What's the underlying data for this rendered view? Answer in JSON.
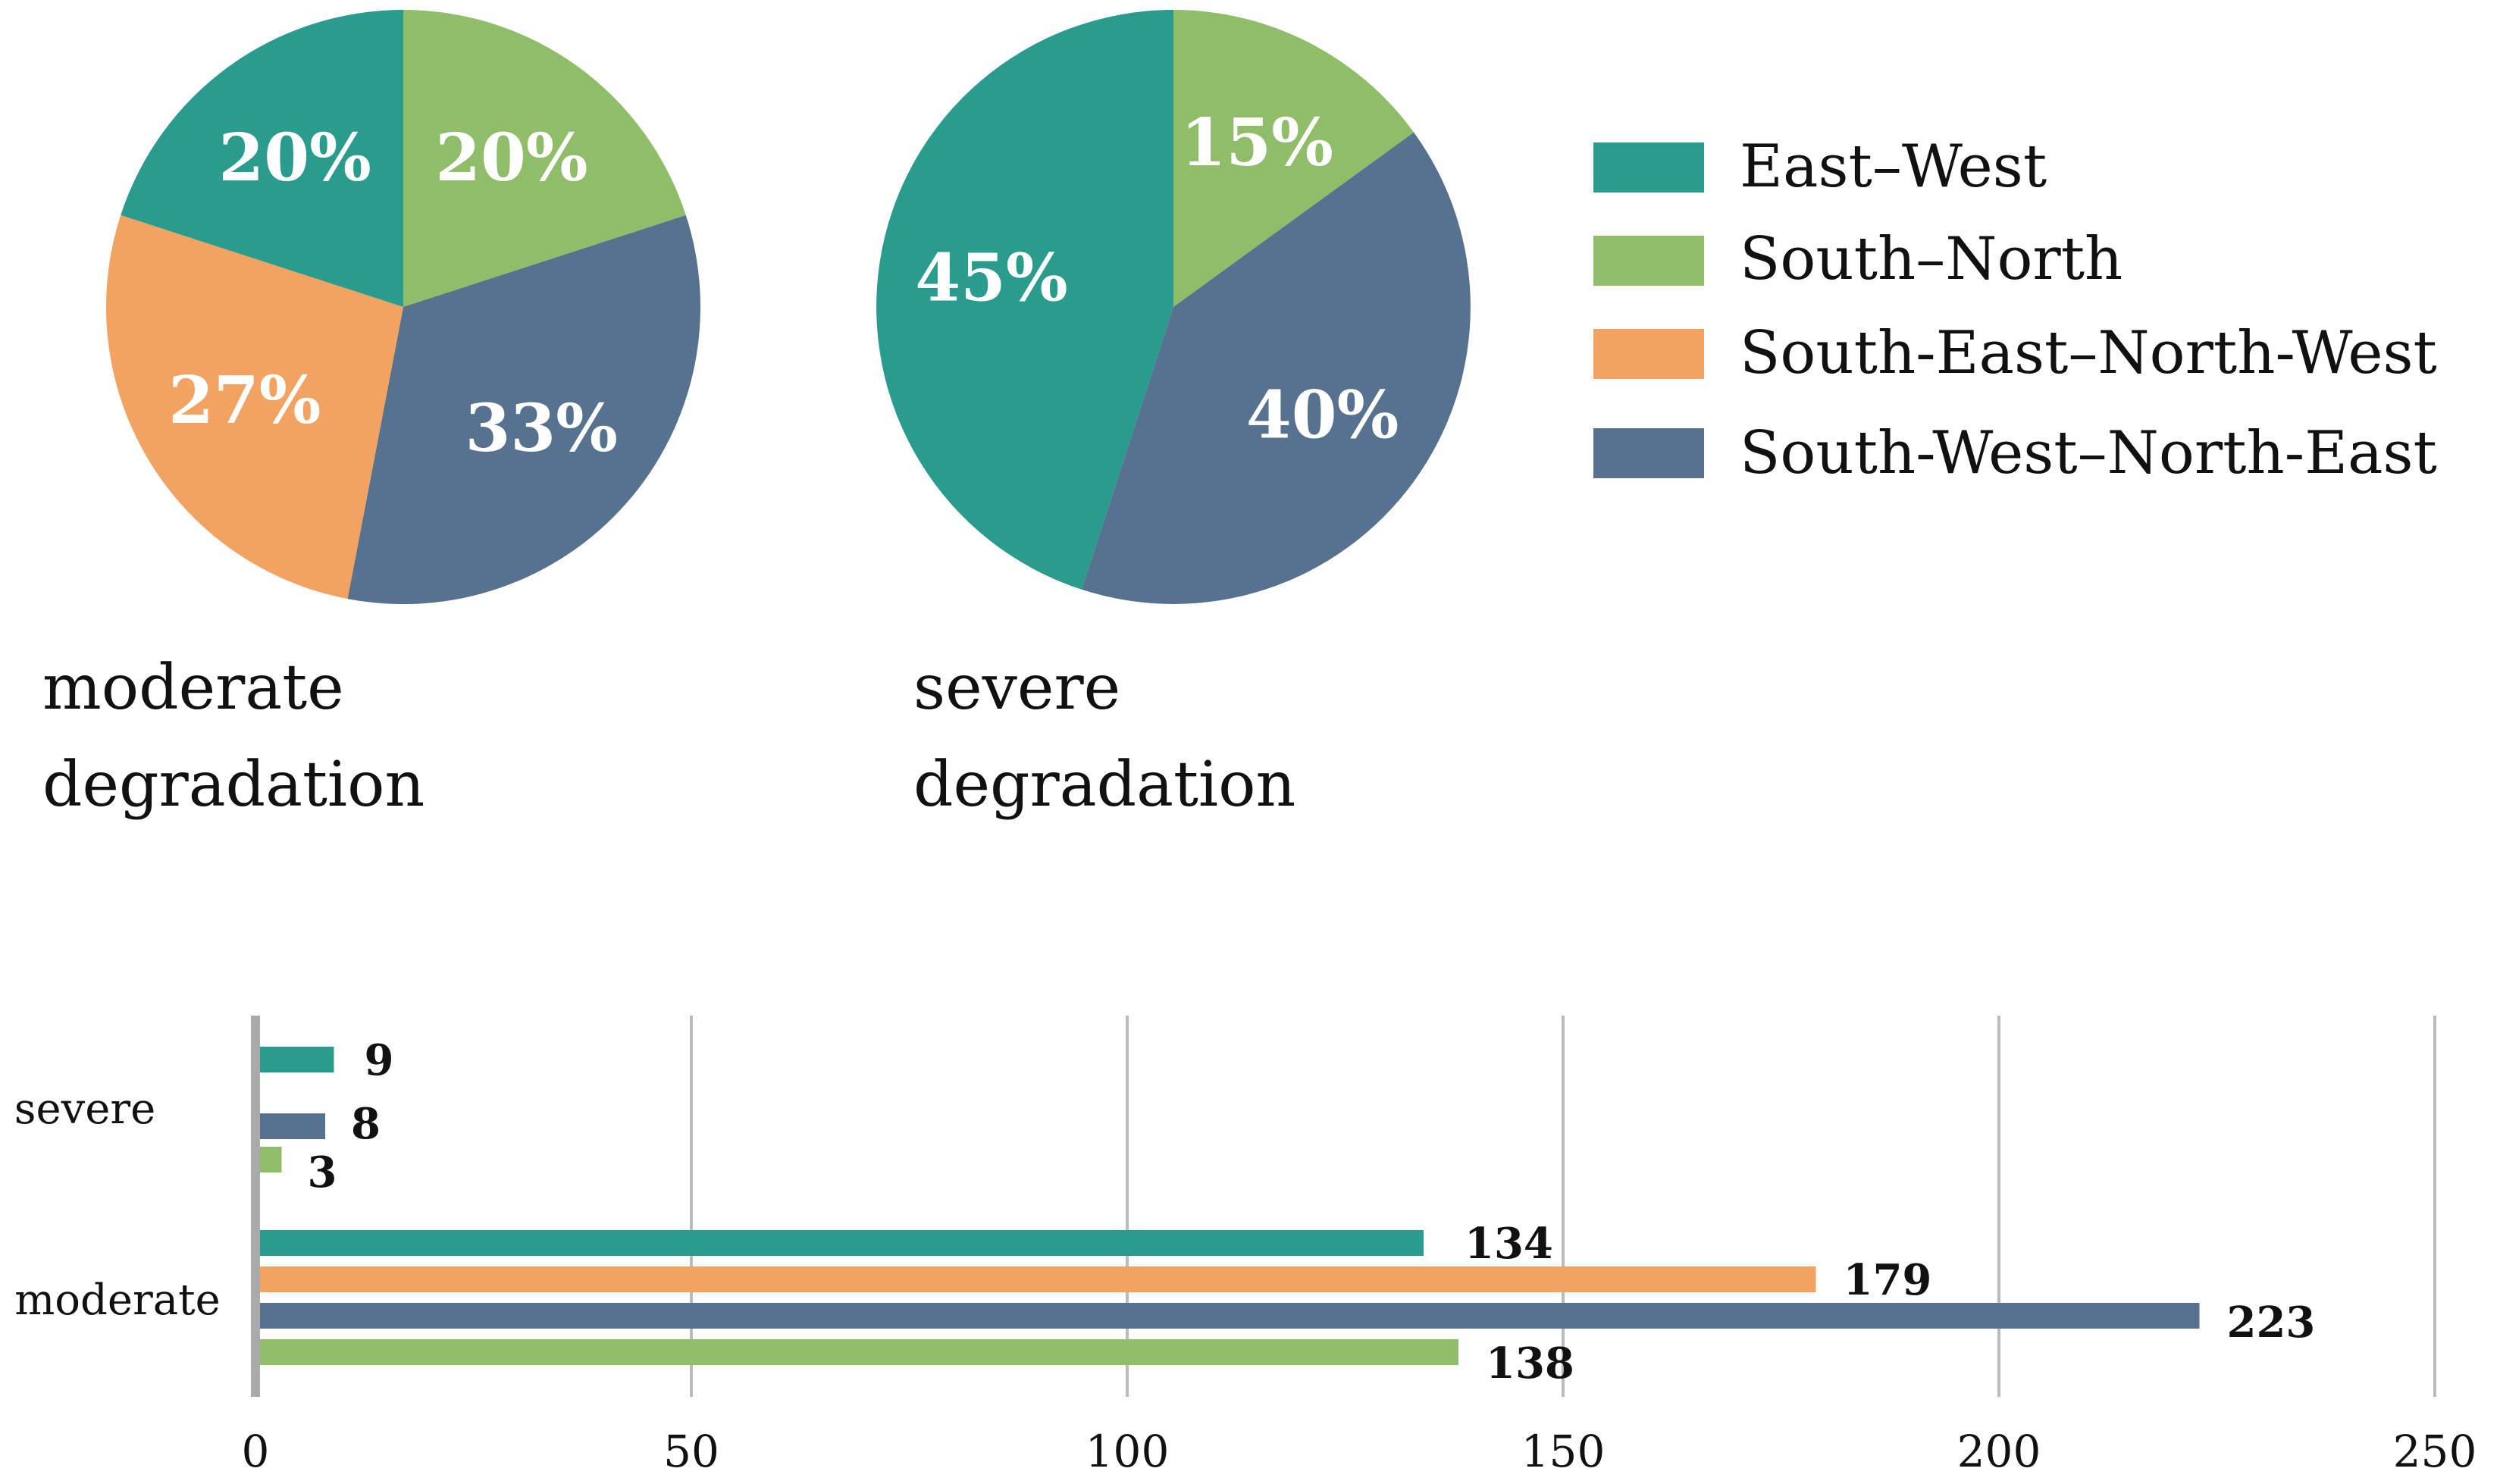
{
  "colors": {
    "East–West": "#2a9c8d",
    "South–North": "#90bd6a",
    "South-East–North-West": "#f2a362",
    "South-West–North-East": "#56728e",
    "axis": "#aaaaaa",
    "grid": "#bbbbbb",
    "text": "#111111",
    "pie_label": "#ffffff"
  },
  "legend": {
    "items": [
      "East–West",
      "South–North",
      "South-East–North-West",
      "South-West–North-East"
    ]
  },
  "chart_data": [
    {
      "type": "pie",
      "title": "moderate degradation",
      "title_lines": [
        "moderate",
        "degradation"
      ],
      "slices": [
        {
          "label": "South–North",
          "value": 20,
          "text": "20%"
        },
        {
          "label": "South-West–North-East",
          "value": 33,
          "text": "33%"
        },
        {
          "label": "South-East–North-West",
          "value": 27,
          "text": "27%"
        },
        {
          "label": "East–West",
          "value": 20,
          "text": "20%"
        }
      ]
    },
    {
      "type": "pie",
      "title": "severe degradation",
      "title_lines": [
        "severe",
        "degradation"
      ],
      "slices": [
        {
          "label": "South–North",
          "value": 15,
          "text": "15%"
        },
        {
          "label": "South-West–North-East",
          "value": 40,
          "text": "40%"
        },
        {
          "label": "East–West",
          "value": 45,
          "text": "45%"
        }
      ]
    },
    {
      "type": "bar",
      "orientation": "horizontal",
      "categories": [
        "severe",
        "moderate"
      ],
      "series_order": [
        "East–West",
        "South-East–North-West",
        "South-West–North-East",
        "South–North"
      ],
      "bars": {
        "severe": [
          {
            "series": "East–West",
            "value": 9
          },
          {
            "series": "South-West–North-East",
            "value": 8
          },
          {
            "series": "South–North",
            "value": 3
          }
        ],
        "moderate": [
          {
            "series": "East–West",
            "value": 134
          },
          {
            "series": "South-East–North-West",
            "value": 179
          },
          {
            "series": "South-West–North-East",
            "value": 223
          },
          {
            "series": "South–North",
            "value": 138
          }
        ]
      },
      "xlim": [
        0,
        250
      ],
      "xticks": [
        0,
        50,
        100,
        150,
        200,
        250
      ],
      "grid": true,
      "xlabel": "",
      "ylabel": ""
    }
  ]
}
